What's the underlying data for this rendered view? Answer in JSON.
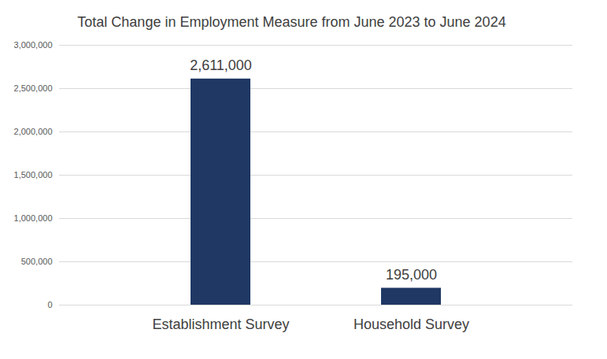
{
  "chart_data": {
    "type": "bar",
    "title": "Total Change in Employment Measure from June 2023 to June 2024",
    "categories": [
      "Establishment Survey",
      "Household Survey"
    ],
    "values": [
      2611000,
      195000
    ],
    "value_labels": [
      "2,611,000",
      "195,000"
    ],
    "data_labels": true,
    "color": "#1f3864",
    "ylim": [
      0,
      3000000
    ],
    "yticks": [
      0,
      {
        "value": 500000,
        "label": "500,000"
      },
      {
        "value": 1000000,
        "label": "1,000,000"
      },
      {
        "value": 1500000,
        "label": "1,500,000"
      },
      {
        "value": 2000000,
        "label": "2,000,000"
      },
      {
        "value": 2500000,
        "label": "2,500,000"
      },
      {
        "value": 3000000,
        "label": "3,000,000"
      }
    ],
    "grid": true
  }
}
